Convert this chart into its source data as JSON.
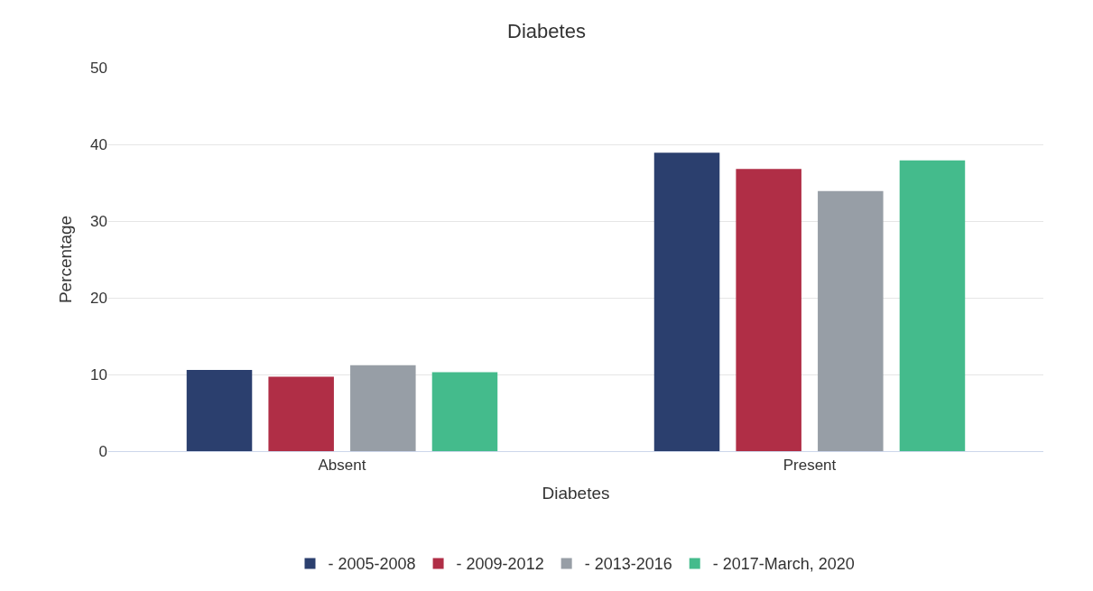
{
  "chart_data": {
    "type": "bar",
    "title": "Diabetes",
    "xlabel": "Diabetes",
    "ylabel": "Percentage",
    "categories": [
      "Absent",
      "Present"
    ],
    "series": [
      {
        "name": "- 2005-2008",
        "color": "#2b3f6e",
        "values": [
          10.6,
          38.9
        ]
      },
      {
        "name": "- 2009-2012",
        "color": "#b02e46",
        "values": [
          9.7,
          36.8
        ]
      },
      {
        "name": "- 2013-2016",
        "color": "#979ea6",
        "values": [
          11.2,
          33.9
        ]
      },
      {
        "name": "- 2017-March, 2020",
        "color": "#44bb8c",
        "values": [
          10.3,
          37.9
        ]
      }
    ],
    "ylim": [
      0,
      50
    ],
    "yticks": [
      0,
      10,
      20,
      30,
      40,
      50
    ],
    "grid": "y",
    "legend": "bottom"
  }
}
